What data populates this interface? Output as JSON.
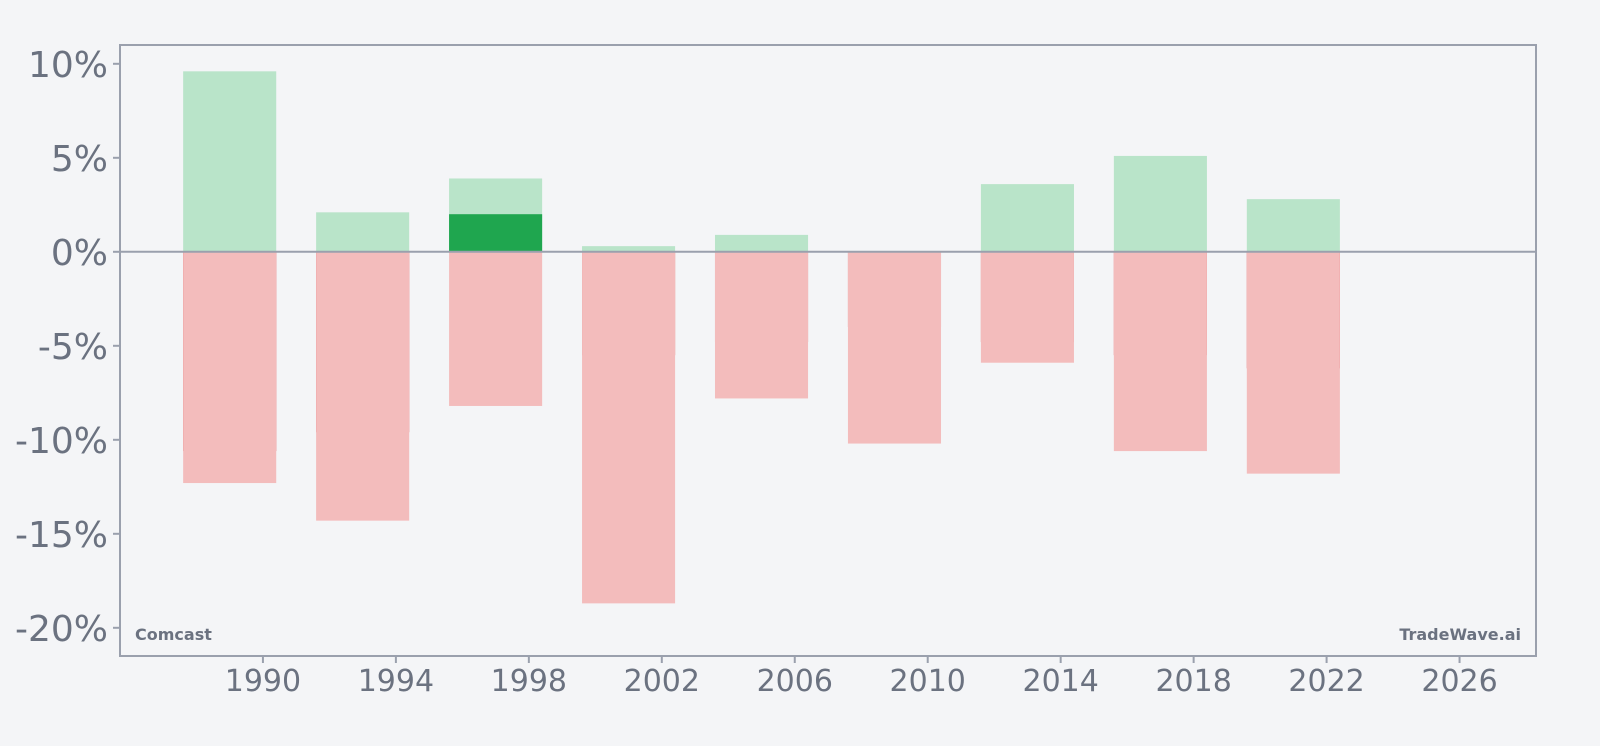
{
  "chart_data": {
    "type": "bar",
    "x": [
      1989,
      1993,
      1997,
      2001,
      2005,
      2009,
      2013,
      2017,
      2021
    ],
    "series": [
      {
        "role": "max_gain",
        "values": [
          9.6,
          2.1,
          3.9,
          0.3,
          0.9,
          0.0,
          3.6,
          5.1,
          2.8
        ]
      },
      {
        "role": "gain",
        "values": [
          0,
          0,
          2.0,
          0,
          0,
          0,
          0,
          0,
          0
        ]
      },
      {
        "role": "loss",
        "values": [
          -10.6,
          -9.6,
          0,
          -5.5,
          -4.8,
          -4.0,
          -4.8,
          -5.5,
          -6.2
        ]
      },
      {
        "role": "max_drawdown",
        "values": [
          -12.3,
          -14.3,
          -8.2,
          -18.7,
          -7.8,
          -10.2,
          -5.9,
          -10.6,
          -11.8
        ]
      }
    ],
    "xlim": [
      1985.7,
      2028.3
    ],
    "ylim": [
      -21.5,
      11.0
    ],
    "xticks": [
      1990,
      1994,
      1998,
      2002,
      2006,
      2010,
      2014,
      2018,
      2022,
      2026
    ],
    "xtick_labels": [
      "1990",
      "1994",
      "1998",
      "2002",
      "2006",
      "2010",
      "2014",
      "2018",
      "2022",
      "2026"
    ],
    "yticks": [
      10,
      5,
      0,
      -5,
      -10,
      -15,
      -20
    ],
    "ytick_labels": [
      "10%",
      "5%",
      "0%",
      "-5%",
      "-10%",
      "-15%",
      "-20%"
    ],
    "bar_width_years": 2.8,
    "grid": false,
    "colors": {
      "max_gain": "#b9e4c9",
      "gain": "#1fa64f",
      "loss": "#dc3031",
      "max_drawdown": "#f3bcbc",
      "axis": "#9aa0ad",
      "text": "#6b7280",
      "background": "#f4f5f7"
    }
  },
  "watermark_left": "Comcast",
  "watermark_right": "TradeWave.ai"
}
